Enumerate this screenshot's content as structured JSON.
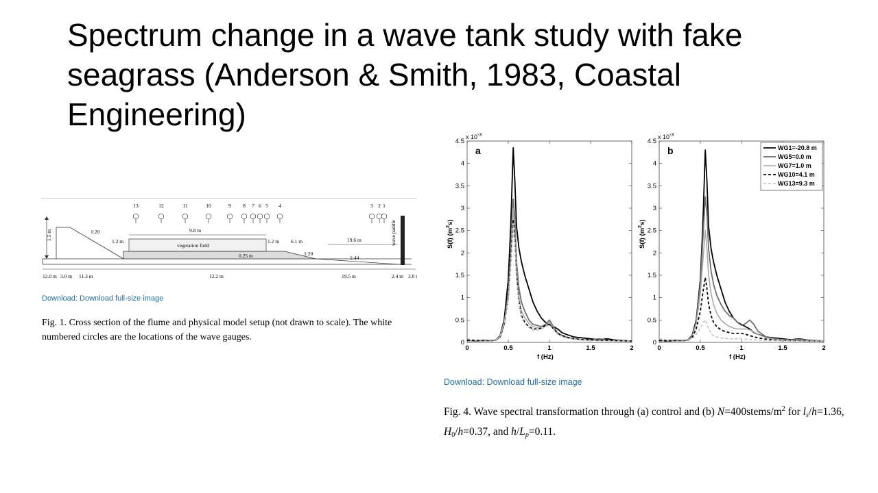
{
  "slide": {
    "title": "Spectrum change in a wave tank study with fake seagrass (Anderson & Smith, 1983, Coastal Engineering)"
  },
  "figure1": {
    "gauge_numbers": [
      "13",
      "12",
      "11",
      "10",
      "9",
      "8",
      "7",
      "6",
      "5",
      "4",
      "3",
      "2",
      "1"
    ],
    "labels": {
      "height": "1.5 m",
      "slope_left": "1:20",
      "gap_left": "1.2 m",
      "veg_length": "9.8 m",
      "veg_field": "vegetation field",
      "veg_height": "0.25 m",
      "gap_right": "1.2 m",
      "dist_61": "6.1 m",
      "slope_right": "1:20",
      "dist_196": "19.6 m",
      "slope_144": "1:44",
      "paddle": "wave paddle"
    },
    "bottom_dims": [
      "12.0 m",
      "3.0 m",
      "11.3 m",
      "12.2 m",
      "19.5 m",
      "2.4 m",
      "3.0 m"
    ],
    "download": "Download: Download full-size image",
    "caption": "Fig. 1. Cross section of the flume and physical model setup (not drawn to scale). The white numbered circles are the locations of the wave gauges."
  },
  "figure4": {
    "download": "Download: Download full-size image",
    "caption_parts": {
      "a": "Fig. 4. Wave spectral transformation through (a) control and (b) ",
      "n_sym": "N",
      "b": "=400stems/m",
      "sup2": "2",
      "c": " for ",
      "l_sym": "l",
      "l_sub": "s",
      "d": "/",
      "h1": "h",
      "e": "=1.36, ",
      "H_sym": "H",
      "H_sub": "0",
      "f": "/",
      "h2": "h",
      "g": "=0.37, and ",
      "h3": "h",
      "h_": "/",
      "L_sym": "L",
      "L_sub": "p",
      "i": "=0.11."
    }
  },
  "chart_data": [
    {
      "type": "line",
      "panel_label": "a",
      "exponent_label": "x 10",
      "exponent_power": "-3",
      "xlabel": "f (Hz)",
      "ylabel": "S(f) (m",
      "ylabel_sup": "2",
      "ylabel_end": "s)",
      "xlim": [
        0,
        2
      ],
      "ylim": [
        0,
        4.5
      ],
      "x_ticks": [
        "0",
        "0.5",
        "1",
        "1.5",
        "2"
      ],
      "y_ticks": [
        "0",
        "0.5",
        "1",
        "1.5",
        "2",
        "2.5",
        "3",
        "3.5",
        "4",
        "4.5"
      ],
      "series": [
        {
          "name": "WG1=-20.8 m",
          "color": "#000000",
          "dash": "",
          "width": 1.8,
          "x": [
            0,
            0.1,
            0.2,
            0.3,
            0.35,
            0.4,
            0.45,
            0.5,
            0.53,
            0.56,
            0.58,
            0.6,
            0.63,
            0.66,
            0.7,
            0.75,
            0.8,
            0.85,
            0.9,
            0.95,
            1.0,
            1.05,
            1.1,
            1.15,
            1.2,
            1.3,
            1.4,
            1.5,
            1.6,
            1.7,
            1.8,
            1.9,
            2.0
          ],
          "y": [
            0.05,
            0.03,
            0.05,
            0.04,
            0.06,
            0.15,
            0.5,
            1.4,
            2.6,
            4.35,
            3.6,
            2.6,
            2.1,
            1.8,
            1.5,
            1.2,
            0.9,
            0.7,
            0.55,
            0.45,
            0.4,
            0.35,
            0.3,
            0.22,
            0.18,
            0.12,
            0.1,
            0.08,
            0.06,
            0.08,
            0.05,
            0.04,
            0.03
          ]
        },
        {
          "name": "WG5=0.0 m",
          "color": "#6e6e6e",
          "dash": "",
          "width": 1.8,
          "x": [
            0,
            0.1,
            0.2,
            0.3,
            0.35,
            0.4,
            0.45,
            0.5,
            0.53,
            0.56,
            0.58,
            0.6,
            0.63,
            0.66,
            0.7,
            0.75,
            0.8,
            0.85,
            0.9,
            0.95,
            1.0,
            1.05,
            1.1,
            1.2,
            1.3,
            1.4,
            1.5,
            1.6,
            1.7,
            1.8,
            1.9,
            2.0
          ],
          "y": [
            0.04,
            0.03,
            0.04,
            0.04,
            0.05,
            0.12,
            0.4,
            1.1,
            2.0,
            3.2,
            2.8,
            1.8,
            1.2,
            0.9,
            0.7,
            0.5,
            0.4,
            0.38,
            0.35,
            0.4,
            0.5,
            0.35,
            0.2,
            0.12,
            0.08,
            0.06,
            0.05,
            0.08,
            0.05,
            0.04,
            0.03,
            0.03
          ]
        },
        {
          "name": "WG7=1.0 m",
          "color": "#a9a9a9",
          "dash": "",
          "width": 1.6,
          "x": [
            0,
            0.1,
            0.2,
            0.3,
            0.35,
            0.4,
            0.45,
            0.5,
            0.53,
            0.56,
            0.58,
            0.6,
            0.63,
            0.66,
            0.7,
            0.75,
            0.8,
            0.85,
            0.9,
            0.95,
            1.0,
            1.05,
            1.1,
            1.2,
            1.3,
            1.4,
            1.5,
            1.6,
            1.8,
            2.0
          ],
          "y": [
            0.05,
            0.04,
            0.05,
            0.05,
            0.06,
            0.14,
            0.45,
            1.0,
            1.9,
            3.0,
            2.5,
            1.6,
            1.0,
            0.7,
            0.55,
            0.42,
            0.35,
            0.33,
            0.3,
            0.36,
            0.45,
            0.32,
            0.18,
            0.1,
            0.08,
            0.06,
            0.05,
            0.04,
            0.04,
            0.03
          ]
        },
        {
          "name": "WG10=4.1 m",
          "color": "#000000",
          "dash": "4,3",
          "width": 1.8,
          "x": [
            0,
            0.1,
            0.2,
            0.3,
            0.35,
            0.4,
            0.45,
            0.5,
            0.53,
            0.56,
            0.58,
            0.6,
            0.63,
            0.66,
            0.7,
            0.75,
            0.8,
            0.85,
            0.9,
            0.95,
            1.0,
            1.05,
            1.1,
            1.2,
            1.3,
            1.4,
            1.6,
            1.8,
            2.0
          ],
          "y": [
            0.05,
            0.04,
            0.04,
            0.04,
            0.06,
            0.12,
            0.4,
            1.0,
            1.8,
            2.75,
            2.3,
            1.5,
            0.9,
            0.6,
            0.45,
            0.35,
            0.3,
            0.3,
            0.32,
            0.38,
            0.4,
            0.3,
            0.2,
            0.12,
            0.08,
            0.06,
            0.05,
            0.04,
            0.03
          ]
        },
        {
          "name": "WG13=9.3 m",
          "color": "#c0c0c0",
          "dash": "4,3",
          "width": 1.6,
          "x": [
            0,
            0.1,
            0.2,
            0.3,
            0.35,
            0.4,
            0.45,
            0.5,
            0.53,
            0.56,
            0.58,
            0.6,
            0.63,
            0.66,
            0.7,
            0.75,
            0.8,
            0.85,
            0.9,
            0.95,
            1.0,
            1.05,
            1.1,
            1.2,
            1.3,
            1.4,
            1.6,
            1.8,
            2.0
          ],
          "y": [
            0.08,
            0.06,
            0.06,
            0.05,
            0.06,
            0.14,
            0.42,
            1.0,
            1.7,
            2.6,
            2.2,
            1.4,
            0.85,
            0.55,
            0.42,
            0.33,
            0.28,
            0.27,
            0.3,
            0.35,
            0.38,
            0.28,
            0.18,
            0.1,
            0.07,
            0.05,
            0.04,
            0.03,
            0.03
          ]
        }
      ]
    },
    {
      "type": "line",
      "panel_label": "b",
      "exponent_label": "x 10",
      "exponent_power": "-3",
      "xlabel": "f (Hz)",
      "ylabel": "S(f) (m",
      "ylabel_sup": "2",
      "ylabel_end": "s)",
      "xlim": [
        0,
        2
      ],
      "ylim": [
        0,
        4.5
      ],
      "x_ticks": [
        "0",
        "0.5",
        "1",
        "1.5",
        "2"
      ],
      "y_ticks": [
        "0",
        "0.5",
        "1",
        "1.5",
        "2",
        "2.5",
        "3",
        "3.5",
        "4",
        "4.5"
      ],
      "legend_position": "top-right",
      "series": [
        {
          "name": "WG1=-20.8 m",
          "color": "#000000",
          "dash": "",
          "width": 1.8,
          "x": [
            0,
            0.1,
            0.2,
            0.3,
            0.35,
            0.4,
            0.45,
            0.5,
            0.53,
            0.56,
            0.58,
            0.6,
            0.63,
            0.66,
            0.7,
            0.75,
            0.8,
            0.85,
            0.9,
            0.95,
            1.0,
            1.05,
            1.1,
            1.15,
            1.2,
            1.3,
            1.4,
            1.5,
            1.6,
            1.7,
            1.8,
            1.9,
            2.0
          ],
          "y": [
            0.05,
            0.03,
            0.05,
            0.04,
            0.06,
            0.15,
            0.5,
            1.4,
            2.6,
            4.3,
            3.6,
            2.6,
            2.1,
            1.8,
            1.5,
            1.2,
            0.9,
            0.7,
            0.55,
            0.45,
            0.4,
            0.35,
            0.3,
            0.22,
            0.18,
            0.12,
            0.1,
            0.08,
            0.06,
            0.08,
            0.05,
            0.04,
            0.03
          ]
        },
        {
          "name": "WG5=0.0 m",
          "color": "#6e6e6e",
          "dash": "",
          "width": 1.8,
          "x": [
            0,
            0.1,
            0.2,
            0.3,
            0.35,
            0.4,
            0.45,
            0.5,
            0.53,
            0.56,
            0.58,
            0.6,
            0.63,
            0.66,
            0.7,
            0.75,
            0.8,
            0.85,
            0.9,
            0.95,
            1.0,
            1.05,
            1.1,
            1.15,
            1.2,
            1.3,
            1.4,
            1.5,
            1.6,
            1.7,
            1.8,
            2.0
          ],
          "y": [
            0.04,
            0.03,
            0.04,
            0.04,
            0.05,
            0.12,
            0.45,
            1.3,
            2.3,
            3.25,
            2.9,
            2.1,
            1.6,
            1.3,
            1.05,
            0.85,
            0.7,
            0.6,
            0.55,
            0.45,
            0.38,
            0.42,
            0.5,
            0.4,
            0.25,
            0.12,
            0.08,
            0.06,
            0.05,
            0.07,
            0.04,
            0.03
          ]
        },
        {
          "name": "WG7=1.0 m",
          "color": "#a9a9a9",
          "dash": "",
          "width": 1.6,
          "x": [
            0,
            0.1,
            0.2,
            0.3,
            0.35,
            0.4,
            0.45,
            0.5,
            0.53,
            0.56,
            0.58,
            0.6,
            0.63,
            0.66,
            0.7,
            0.75,
            0.8,
            0.85,
            0.9,
            0.95,
            1.0,
            1.05,
            1.1,
            1.2,
            1.3,
            1.4,
            1.6,
            1.8,
            2.0
          ],
          "y": [
            0.05,
            0.04,
            0.05,
            0.05,
            0.06,
            0.13,
            0.42,
            1.1,
            1.8,
            2.5,
            2.1,
            1.5,
            1.1,
            0.85,
            0.65,
            0.5,
            0.42,
            0.36,
            0.32,
            0.3,
            0.3,
            0.3,
            0.28,
            0.18,
            0.1,
            0.07,
            0.05,
            0.04,
            0.03
          ]
        },
        {
          "name": "WG10=4.1 m",
          "color": "#000000",
          "dash": "4,3",
          "width": 1.8,
          "x": [
            0,
            0.1,
            0.2,
            0.3,
            0.35,
            0.4,
            0.45,
            0.5,
            0.53,
            0.56,
            0.58,
            0.6,
            0.63,
            0.66,
            0.7,
            0.75,
            0.8,
            0.85,
            0.9,
            0.95,
            1.0,
            1.05,
            1.1,
            1.2,
            1.3,
            1.4,
            1.6,
            1.8,
            2.0
          ],
          "y": [
            0.04,
            0.03,
            0.04,
            0.04,
            0.05,
            0.1,
            0.3,
            0.7,
            1.1,
            1.45,
            1.2,
            0.85,
            0.6,
            0.45,
            0.35,
            0.28,
            0.24,
            0.22,
            0.2,
            0.2,
            0.2,
            0.18,
            0.15,
            0.1,
            0.07,
            0.05,
            0.04,
            0.03,
            0.03
          ]
        },
        {
          "name": "WG13=9.3 m",
          "color": "#c0c0c0",
          "dash": "4,3",
          "width": 1.6,
          "x": [
            0,
            0.1,
            0.2,
            0.3,
            0.35,
            0.4,
            0.45,
            0.5,
            0.53,
            0.56,
            0.58,
            0.6,
            0.63,
            0.66,
            0.7,
            0.75,
            0.8,
            0.85,
            0.9,
            0.95,
            1.0,
            1.05,
            1.1,
            1.2,
            1.3,
            1.4,
            1.6,
            1.8,
            2.0
          ],
          "y": [
            0.08,
            0.06,
            0.06,
            0.05,
            0.06,
            0.08,
            0.18,
            0.32,
            0.42,
            0.5,
            0.42,
            0.3,
            0.2,
            0.15,
            0.12,
            0.1,
            0.09,
            0.08,
            0.08,
            0.08,
            0.08,
            0.07,
            0.06,
            0.05,
            0.04,
            0.04,
            0.03,
            0.03,
            0.03
          ]
        }
      ]
    }
  ]
}
